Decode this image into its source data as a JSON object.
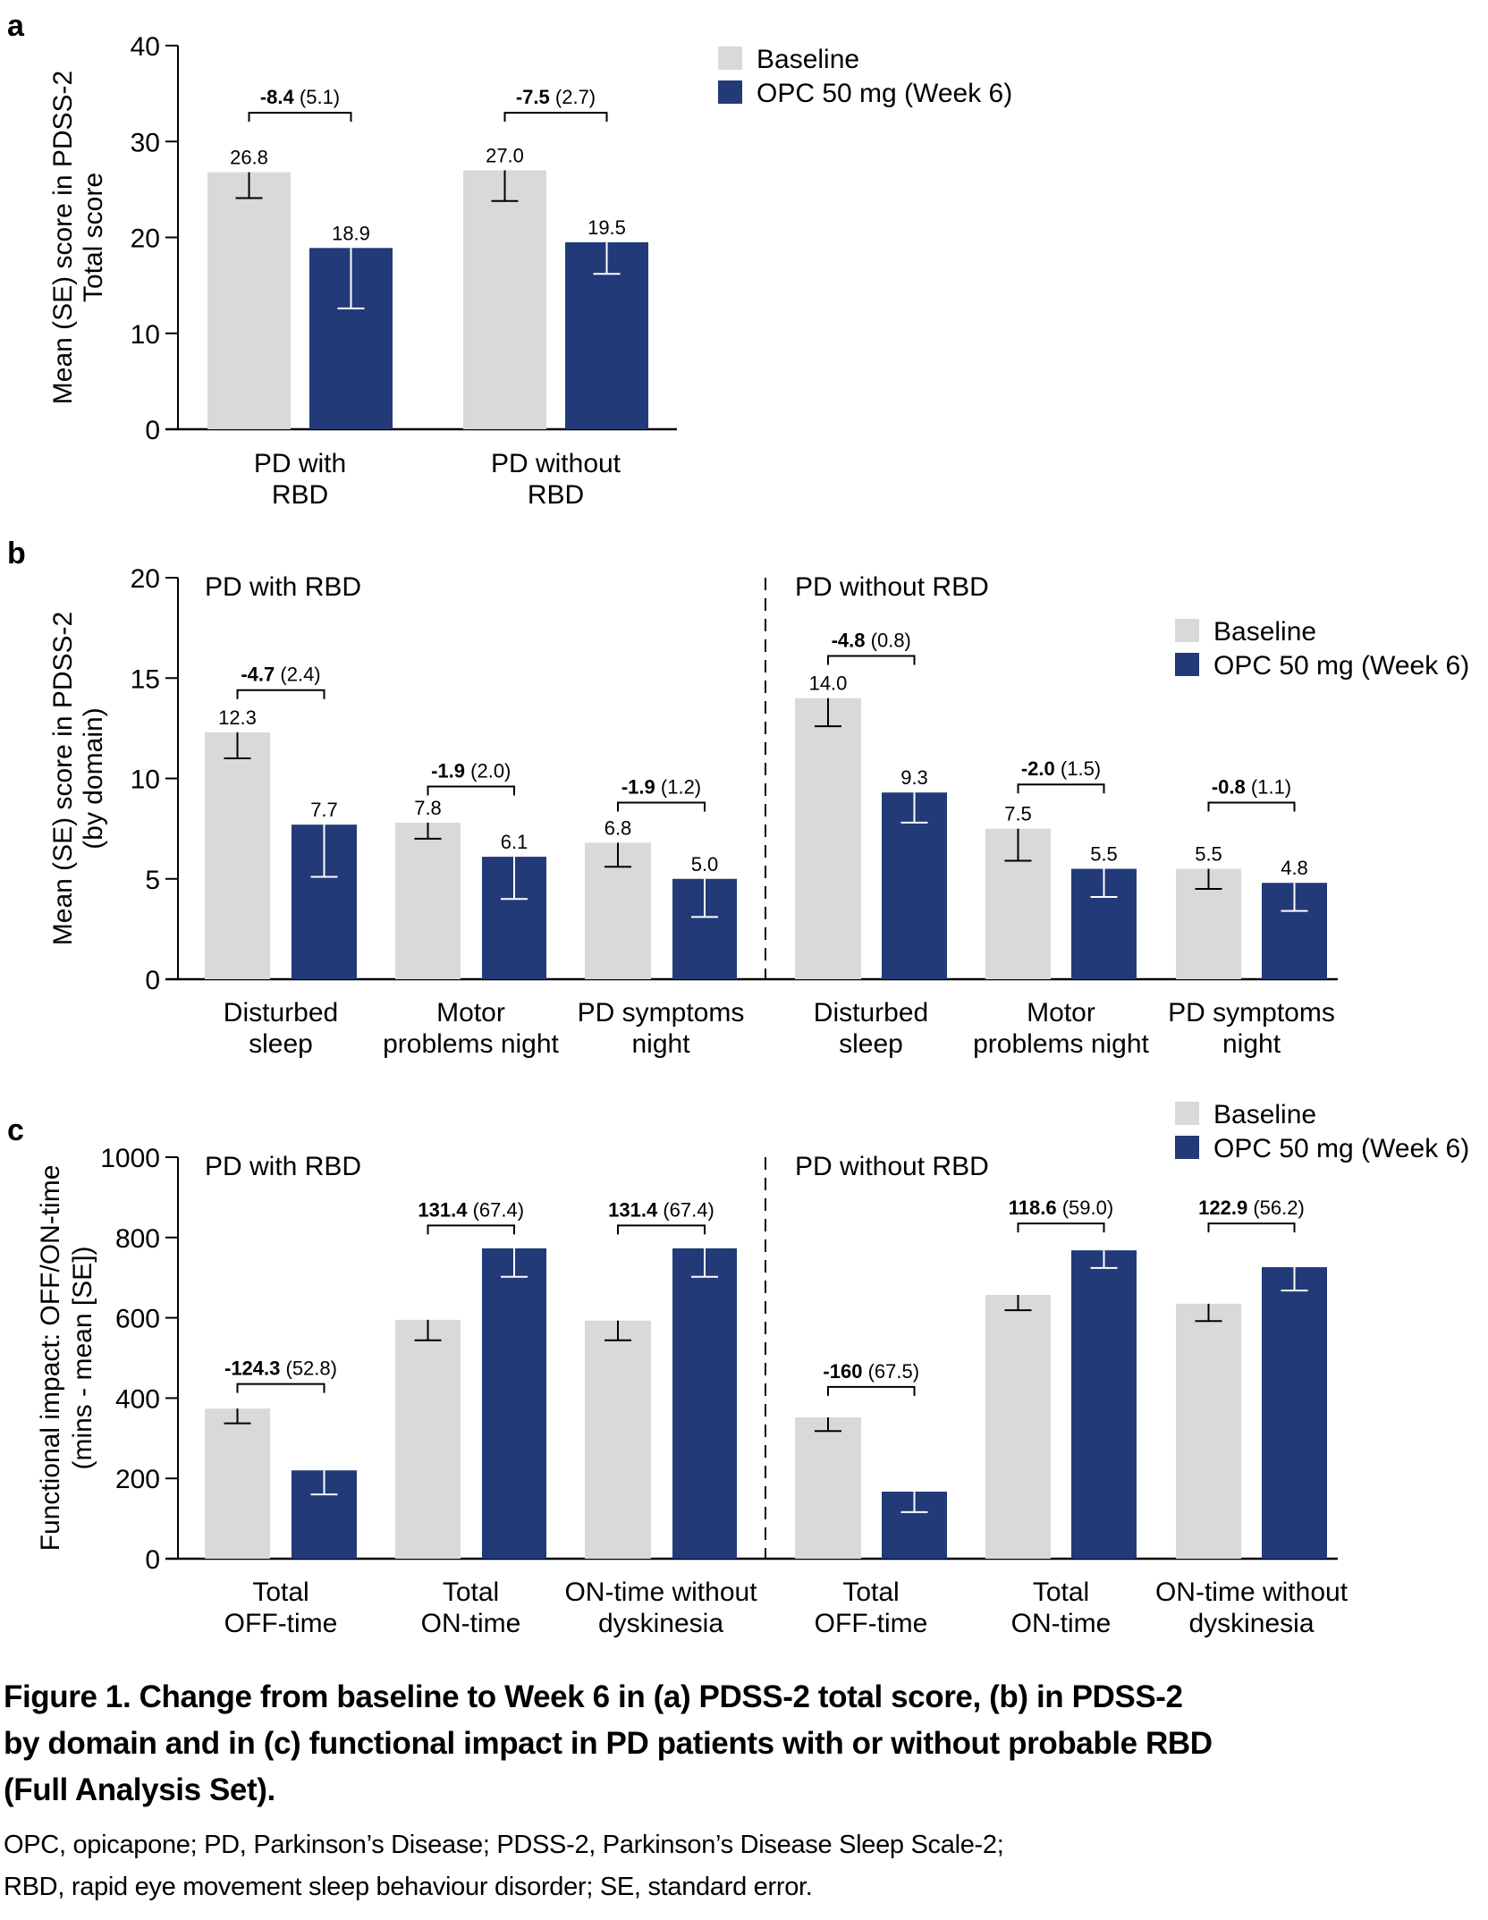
{
  "colors": {
    "baseline": "#D9D9D9",
    "opc": "#223A78",
    "axis": "#000000"
  },
  "legend": {
    "items": [
      {
        "label": "Baseline",
        "color": "#D9D9D9"
      },
      {
        "label": "OPC 50 mg (Week 6)",
        "color": "#223A78"
      }
    ]
  },
  "chart_data": [
    {
      "panel": "a",
      "type": "bar",
      "panel_label": "a",
      "title": "",
      "ylabel": [
        "Mean (SE) score in PDSS-2",
        "Total score"
      ],
      "xlabel": "",
      "ylim": [
        0,
        40
      ],
      "yticks": [
        0,
        10,
        20,
        30,
        40
      ],
      "legend_position": "top-right",
      "grid": false,
      "categories": [
        [
          "PD with",
          "RBD"
        ],
        [
          "PD without",
          "RBD"
        ]
      ],
      "series": [
        {
          "name": "Baseline",
          "values": [
            26.8,
            27.0
          ],
          "error_low": [
            24.1,
            23.8
          ],
          "value_labels": [
            "26.8",
            "27.0"
          ]
        },
        {
          "name": "OPC 50 mg (Week 6)",
          "values": [
            18.9,
            19.5
          ],
          "error_low": [
            12.6,
            16.2
          ],
          "value_labels": [
            "18.9",
            "19.5"
          ]
        }
      ],
      "differences": [
        {
          "bold": "-8.4",
          "se": "(5.1)",
          "bracket_at": 33.0
        },
        {
          "bold": "-7.5",
          "se": "(2.7)",
          "bracket_at": 33.0
        }
      ]
    },
    {
      "panel": "b",
      "type": "bar",
      "panel_label": "b",
      "ylabel": [
        "Mean (SE) score in PDSS-2",
        "(by domain)"
      ],
      "xlabel": "",
      "ylim": [
        0,
        20
      ],
      "yticks": [
        0,
        5,
        10,
        15,
        20
      ],
      "legend_position": "top-right",
      "grid": false,
      "groups": [
        {
          "title": "PD with RBD",
          "categories": [
            [
              "Disturbed",
              "sleep"
            ],
            [
              "Motor",
              "problems night"
            ],
            [
              "PD symptoms",
              "night"
            ]
          ],
          "series": [
            {
              "name": "Baseline",
              "values": [
                12.3,
                7.8,
                6.8
              ],
              "error_low": [
                11.0,
                7.0,
                5.6
              ],
              "value_labels": [
                "12.3",
                "7.8",
                "6.8"
              ]
            },
            {
              "name": "OPC 50 mg (Week 6)",
              "values": [
                7.7,
                6.1,
                5.0
              ],
              "error_low": [
                5.1,
                4.0,
                3.1
              ],
              "value_labels": [
                "7.7",
                "6.1",
                "5.0"
              ]
            }
          ],
          "differences": [
            {
              "bold": "-4.7",
              "se": "(2.4)",
              "bracket_at": 14.4
            },
            {
              "bold": "-1.9",
              "se": "(2.0)",
              "bracket_at": 9.6
            },
            {
              "bold": "-1.9",
              "se": "(1.2)",
              "bracket_at": 8.8
            }
          ]
        },
        {
          "title": "PD without RBD",
          "categories": [
            [
              "Disturbed",
              "sleep"
            ],
            [
              "Motor",
              "problems night"
            ],
            [
              "PD symptoms",
              "night"
            ]
          ],
          "series": [
            {
              "name": "Baseline",
              "values": [
                14.0,
                7.5,
                5.5
              ],
              "error_low": [
                12.6,
                5.9,
                4.5
              ],
              "value_labels": [
                "14.0",
                "7.5",
                "5.5"
              ]
            },
            {
              "name": "OPC 50 mg (Week 6)",
              "values": [
                9.3,
                5.5,
                4.8
              ],
              "error_low": [
                7.8,
                4.1,
                3.4
              ],
              "value_labels": [
                "9.3",
                "5.5",
                "4.8"
              ]
            }
          ],
          "differences": [
            {
              "bold": "-4.8",
              "se": "(0.8)",
              "bracket_at": 16.1
            },
            {
              "bold": "-2.0",
              "se": "(1.5)",
              "bracket_at": 9.7
            },
            {
              "bold": "-0.8",
              "se": "(1.1)",
              "bracket_at": 8.8
            }
          ]
        }
      ]
    },
    {
      "panel": "c",
      "type": "bar",
      "panel_label": "c",
      "ylabel": [
        "Functional impact: OFF/ON-time",
        "(mins - mean [SE])"
      ],
      "xlabel": "",
      "ylim": [
        0,
        1000
      ],
      "yticks": [
        0,
        200,
        400,
        600,
        800,
        1000
      ],
      "legend_position": "top-right",
      "grid": false,
      "groups": [
        {
          "title": "PD with RBD",
          "categories": [
            [
              "Total",
              "OFF-time"
            ],
            [
              "Total",
              "ON-time"
            ],
            [
              "ON-time without",
              "dyskinesia"
            ]
          ],
          "series": [
            {
              "name": "Baseline",
              "values": [
                374,
                595,
                593
              ],
              "error_low": [
                337,
                544,
                544
              ]
            },
            {
              "name": "OPC 50 mg (Week 6)",
              "values": [
                220,
                773,
                773
              ],
              "error_low": [
                160,
                702,
                702
              ]
            }
          ],
          "differences": [
            {
              "bold": "-124.3",
              "se": "(52.8)",
              "bracket_at": 435
            },
            {
              "bold": "131.4",
              "se": "(67.4)",
              "bracket_at": 830
            },
            {
              "bold": "131.4",
              "se": "(67.4)",
              "bracket_at": 830
            }
          ]
        },
        {
          "title": "PD without RBD",
          "categories": [
            [
              "Total",
              "OFF-time"
            ],
            [
              "Total",
              "ON-time"
            ],
            [
              "ON-time without",
              "dyskinesia"
            ]
          ],
          "series": [
            {
              "name": "Baseline",
              "values": [
                352,
                657,
                635
              ],
              "error_low": [
                318,
                619,
                592
              ]
            },
            {
              "name": "OPC 50 mg (Week 6)",
              "values": [
                167,
                768,
                726
              ],
              "error_low": [
                116,
                724,
                668
              ]
            }
          ],
          "differences": [
            {
              "bold": "-160",
              "se": "(67.5)",
              "bracket_at": 428
            },
            {
              "bold": "118.6",
              "se": "(59.0)",
              "bracket_at": 835
            },
            {
              "bold": "122.9",
              "se": "(56.2)",
              "bracket_at": 835
            }
          ]
        }
      ]
    }
  ],
  "caption": {
    "title_lines": [
      "Figure 1. Change from baseline to Week 6 in (a) PDSS-2 total score, (b) in PDSS-2",
      "by domain and in (c) functional impact in PD patients with or without probable RBD",
      "(Full Analysis Set)."
    ],
    "abbreviation_lines": [
      "OPC, opicapone; PD, Parkinson’s Disease; PDSS-2, Parkinson’s Disease Sleep Scale-2;",
      "RBD, rapid eye movement sleep behaviour disorder; SE, standard error."
    ]
  }
}
